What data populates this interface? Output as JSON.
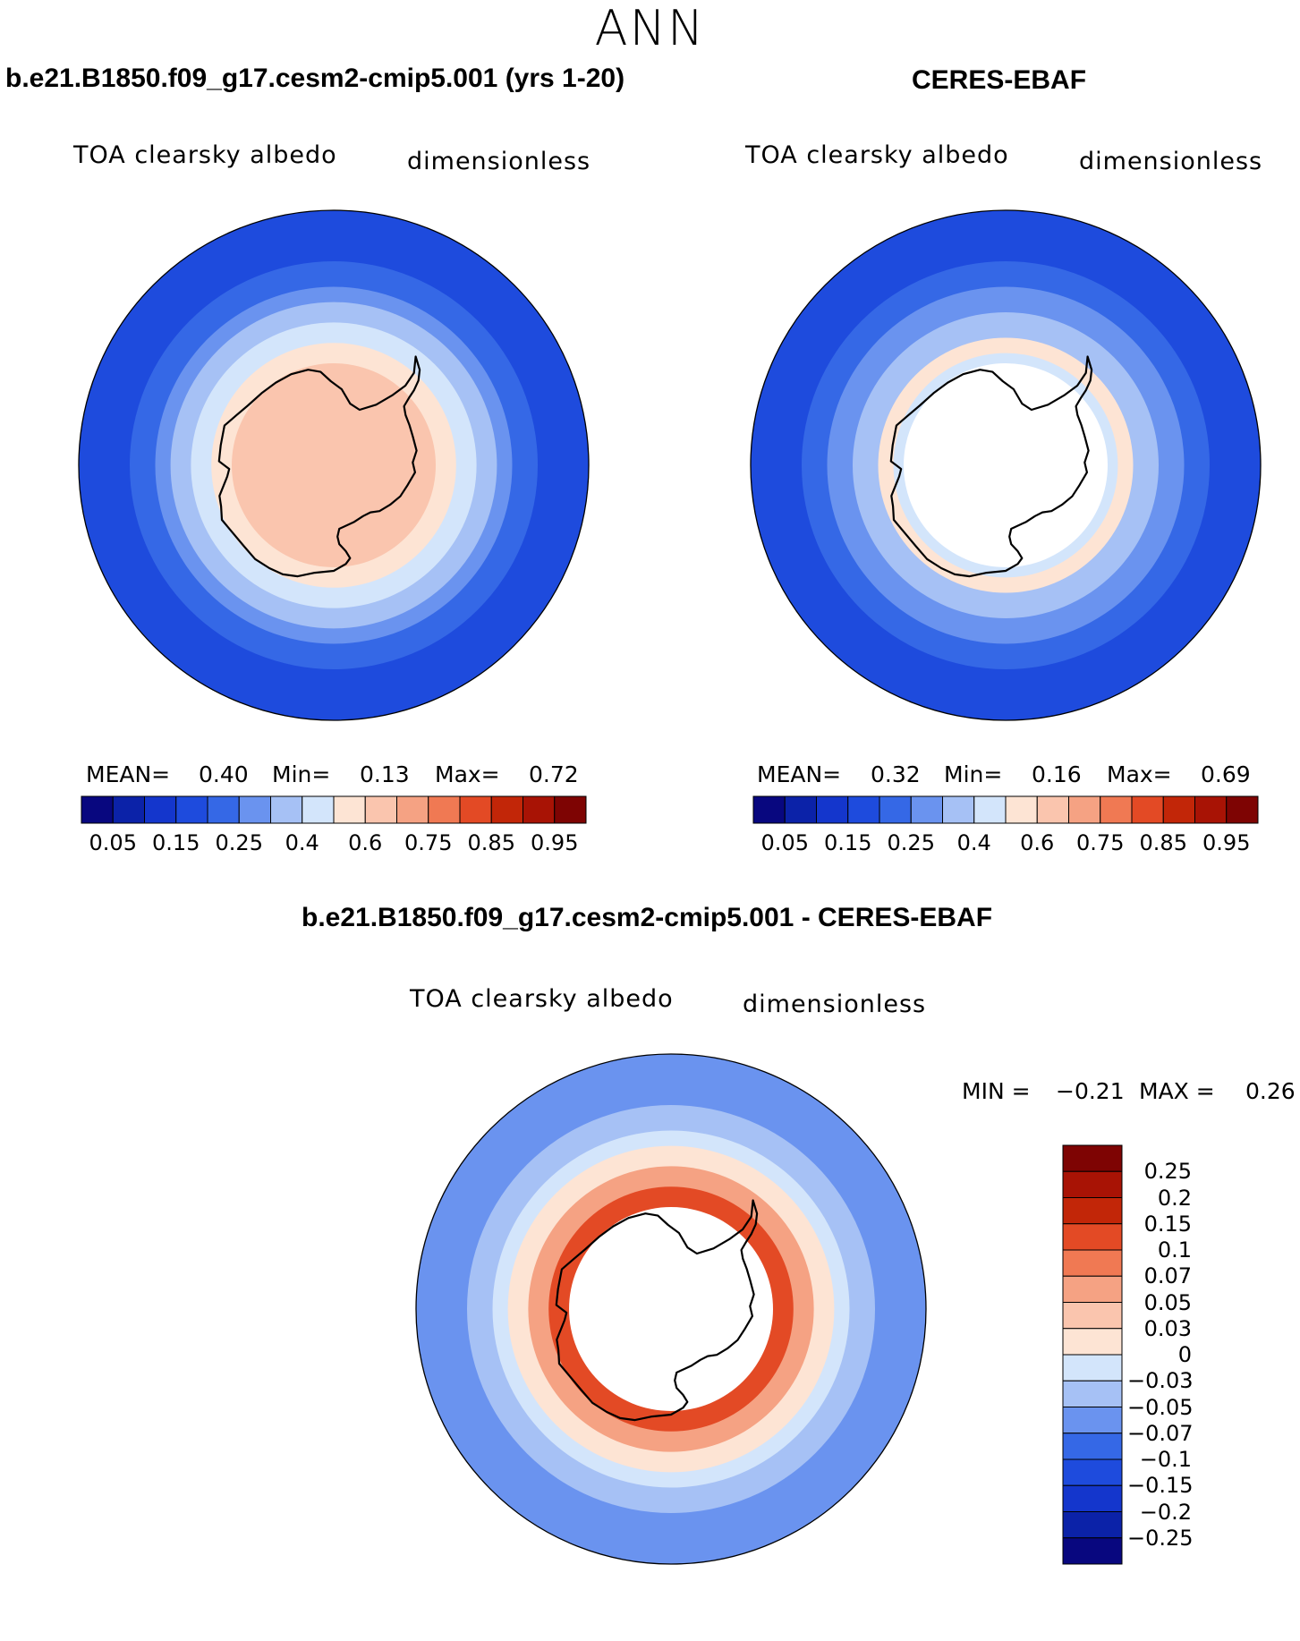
{
  "title": "ANN",
  "chart_data": [
    {
      "type": "contour-map",
      "projection": "south-polar-stereographic",
      "title": "b.e21.B1850.f09_g17.cesm2-cmip5.001 (yrs 1-20)",
      "variable": "TOA clearsky albedo",
      "units": "dimensionless",
      "stats": {
        "mean_label": "MEAN=",
        "mean": "0.40",
        "min_label": "Min=",
        "min": "0.13",
        "max_label": "Max=",
        "max": "0.72"
      },
      "colorbar": {
        "levels": [
          0.05,
          0.1,
          0.15,
          0.2,
          0.25,
          0.3,
          0.4,
          0.5,
          0.6,
          0.7,
          0.75,
          0.8,
          0.85,
          0.9,
          0.95
        ],
        "tick_labels": [
          "0.05",
          "0.15",
          "0.25",
          "0.4",
          "0.6",
          "0.75",
          "0.85",
          "0.95"
        ]
      },
      "field_rings": [
        {
          "to_lat": -50,
          "value": 0.18
        },
        {
          "to_lat": -55,
          "value": 0.22
        },
        {
          "to_lat": -58,
          "value": 0.27
        },
        {
          "to_lat": -62,
          "value": 0.33
        },
        {
          "to_lat": -66,
          "value": 0.45
        },
        {
          "to_lat": -70,
          "value": 0.55
        },
        {
          "to_lat": -90,
          "value": 0.65
        }
      ]
    },
    {
      "type": "contour-map",
      "projection": "south-polar-stereographic",
      "title": "CERES-EBAF",
      "variable": "TOA clearsky albedo",
      "units": "dimensionless",
      "stats": {
        "mean_label": "MEAN=",
        "mean": "0.32",
        "min_label": "Min=",
        "min": "0.16",
        "max_label": "Max=",
        "max": "0.69"
      },
      "colorbar": {
        "levels": [
          0.05,
          0.1,
          0.15,
          0.2,
          0.25,
          0.3,
          0.4,
          0.5,
          0.6,
          0.7,
          0.75,
          0.8,
          0.85,
          0.9,
          0.95
        ],
        "tick_labels": [
          "0.05",
          "0.15",
          "0.25",
          "0.4",
          "0.6",
          "0.75",
          "0.85",
          "0.95"
        ]
      },
      "field_rings": [
        {
          "to_lat": -50,
          "value": 0.18
        },
        {
          "to_lat": -55,
          "value": 0.22
        },
        {
          "to_lat": -60,
          "value": 0.27
        },
        {
          "to_lat": -65,
          "value": 0.33
        },
        {
          "to_lat": -68,
          "value": 0.55
        },
        {
          "to_lat": -70,
          "value": 0.45
        }
      ],
      "missing_poleward_of_lat": -70
    },
    {
      "type": "contour-map",
      "projection": "south-polar-stereographic",
      "title": "b.e21.B1850.f09_g17.cesm2-cmip5.001 - CERES-EBAF",
      "variable": "TOA clearsky albedo",
      "units": "dimensionless",
      "stats": {
        "min_label": "MIN =",
        "min": "−0.21",
        "max_label": "MAX =",
        "max": "0.26"
      },
      "colorbar": {
        "levels": [
          -0.25,
          -0.2,
          -0.15,
          -0.1,
          -0.07,
          -0.05,
          -0.03,
          0,
          0.03,
          0.05,
          0.07,
          0.1,
          0.15,
          0.2,
          0.25
        ],
        "tick_labels": [
          "0.25",
          "0.2",
          "0.15",
          "0.1",
          "0.07",
          "0.05",
          "0.03",
          "0",
          "−0.03",
          "−0.05",
          "−0.07",
          "−0.1",
          "−0.15",
          "−0.2",
          "−0.25"
        ]
      },
      "field_rings": [
        {
          "to_lat": -50,
          "value": -0.06
        },
        {
          "to_lat": -55,
          "value": -0.04
        },
        {
          "to_lat": -58,
          "value": -0.02
        },
        {
          "to_lat": -62,
          "value": 0.02
        },
        {
          "to_lat": -66,
          "value": 0.06
        },
        {
          "to_lat": -70,
          "value": 0.12
        }
      ],
      "missing_poleward_of_lat": -70
    }
  ],
  "colors": {
    "seq": [
      "#08077f",
      "#0b22a8",
      "#1436cc",
      "#1e4bdd",
      "#3568e6",
      "#6a93ef",
      "#a6c1f5",
      "#d3e5fb",
      "#fde4d4",
      "#fac5ae",
      "#f5a283",
      "#f07953",
      "#e34a25",
      "#c22608",
      "#a81305",
      "#7e0403"
    ],
    "div": [
      "#08077f",
      "#0b22a8",
      "#1436cc",
      "#1e4bdd",
      "#3568e6",
      "#6a93ef",
      "#a6c1f5",
      "#d3e5fb",
      "#fde4d4",
      "#fac5ae",
      "#f5a283",
      "#f07953",
      "#e34a25",
      "#c22608",
      "#a81305",
      "#7e0403"
    ],
    "coast": "#000000"
  }
}
